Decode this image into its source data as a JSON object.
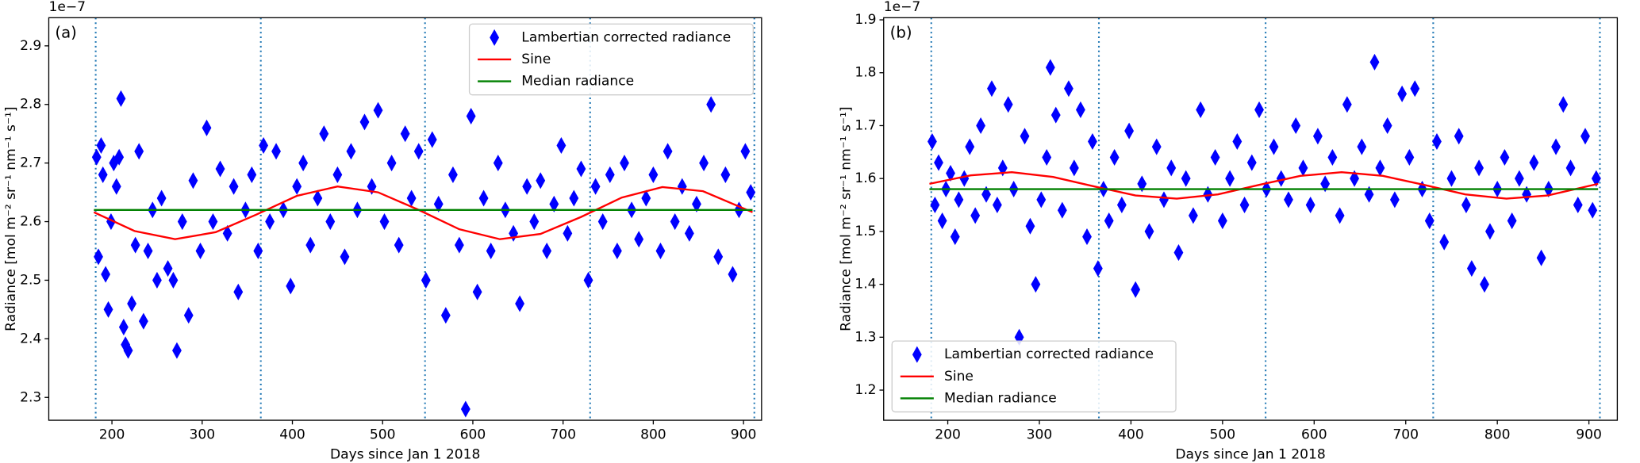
{
  "chart_data": [
    {
      "type": "scatter",
      "panel_label": "(a)",
      "offset_text": "1e−7",
      "xlabel": "Days since Jan 1 2018",
      "ylabel": "Radiance [mol m⁻² sr⁻¹ nm⁻¹ s⁻¹]",
      "xlim": [
        130,
        920
      ],
      "ylim": [
        2.261,
        2.948
      ],
      "xticks": [
        200,
        300,
        400,
        500,
        600,
        700,
        800,
        900
      ],
      "yticks": [
        2.3,
        2.4,
        2.5,
        2.6,
        2.7,
        2.8,
        2.9
      ],
      "legend": "upper right",
      "vlines": [
        182,
        365,
        547,
        730,
        912
      ],
      "vline_color": "#1f77b4",
      "series": [
        {
          "name": "Lambertian corrected radiance",
          "color": "#0000ff",
          "marker": "diamond",
          "x": [
            183,
            185,
            188,
            190,
            193,
            196,
            199,
            202,
            205,
            208,
            210,
            213,
            215,
            218,
            222,
            226,
            230,
            235,
            240,
            245,
            250,
            255,
            262,
            268,
            272,
            278,
            285,
            290,
            298,
            305,
            312,
            320,
            328,
            335,
            340,
            348,
            355,
            362,
            368,
            375,
            382,
            390,
            398,
            405,
            412,
            420,
            428,
            435,
            442,
            450,
            458,
            465,
            472,
            480,
            488,
            495,
            502,
            510,
            518,
            525,
            532,
            540,
            548,
            555,
            562,
            570,
            578,
            585,
            592,
            598,
            605,
            612,
            620,
            628,
            636,
            645,
            652,
            660,
            668,
            675,
            682,
            690,
            698,
            705,
            712,
            720,
            728,
            736,
            744,
            752,
            760,
            768,
            776,
            784,
            792,
            800,
            808,
            816,
            824,
            832,
            840,
            848,
            856,
            864,
            872,
            880,
            888,
            895,
            902,
            908
          ],
          "values": [
            2.71,
            2.54,
            2.73,
            2.68,
            2.51,
            2.45,
            2.6,
            2.7,
            2.66,
            2.71,
            2.81,
            2.42,
            2.39,
            2.38,
            2.46,
            2.56,
            2.72,
            2.43,
            2.55,
            2.62,
            2.5,
            2.64,
            2.52,
            2.5,
            2.38,
            2.6,
            2.44,
            2.67,
            2.55,
            2.76,
            2.6,
            2.69,
            2.58,
            2.66,
            2.48,
            2.62,
            2.68,
            2.55,
            2.73,
            2.6,
            2.72,
            2.62,
            2.49,
            2.66,
            2.7,
            2.56,
            2.64,
            2.75,
            2.6,
            2.68,
            2.54,
            2.72,
            2.62,
            2.77,
            2.66,
            2.79,
            2.6,
            2.7,
            2.56,
            2.75,
            2.64,
            2.72,
            2.5,
            2.74,
            2.63,
            2.44,
            2.68,
            2.56,
            2.28,
            2.78,
            2.48,
            2.64,
            2.55,
            2.7,
            2.62,
            2.58,
            2.46,
            2.66,
            2.6,
            2.67,
            2.55,
            2.63,
            2.73,
            2.58,
            2.64,
            2.69,
            2.5,
            2.66,
            2.6,
            2.68,
            2.55,
            2.7,
            2.62,
            2.57,
            2.64,
            2.68,
            2.55,
            2.72,
            2.6,
            2.66,
            2.58,
            2.63,
            2.7,
            2.8,
            2.54,
            2.68,
            2.51,
            2.62,
            2.72,
            2.65
          ]
        },
        {
          "name": "Sine",
          "color": "#ff0000",
          "marker": "line",
          "x": [
            180,
            225,
            270,
            315,
            360,
            405,
            450,
            495,
            540,
            585,
            630,
            675,
            720,
            765,
            810,
            855,
            910
          ],
          "values": [
            2.616,
            2.584,
            2.57,
            2.582,
            2.612,
            2.644,
            2.66,
            2.65,
            2.62,
            2.587,
            2.57,
            2.579,
            2.608,
            2.641,
            2.659,
            2.652,
            2.616
          ]
        },
        {
          "name": "Median radiance",
          "color": "#008000",
          "marker": "line",
          "x": [
            180,
            910
          ],
          "values": [
            2.62,
            2.62
          ]
        }
      ]
    },
    {
      "type": "scatter",
      "panel_label": "(b)",
      "offset_text": "1e−7",
      "xlabel": "Days since Jan 1 2018",
      "ylabel": "Radiance [mol m⁻² sr⁻¹ nm⁻¹ s⁻¹]",
      "xlim": [
        130,
        931
      ],
      "ylim": [
        1.143,
        1.904
      ],
      "xticks": [
        200,
        300,
        400,
        500,
        600,
        700,
        800,
        900
      ],
      "yticks": [
        1.2,
        1.3,
        1.4,
        1.5,
        1.6,
        1.7,
        1.8,
        1.9
      ],
      "legend": "lower left",
      "vlines": [
        182,
        365,
        547,
        730,
        912
      ],
      "vline_color": "#1f77b4",
      "series": [
        {
          "name": "Lambertian corrected radiance",
          "color": "#0000ff",
          "marker": "diamond",
          "x": [
            183,
            186,
            190,
            194,
            198,
            203,
            208,
            212,
            218,
            224,
            230,
            236,
            242,
            248,
            254,
            260,
            266,
            272,
            278,
            284,
            290,
            296,
            302,
            308,
            312,
            318,
            325,
            332,
            338,
            345,
            352,
            358,
            364,
            370,
            376,
            382,
            390,
            398,
            405,
            412,
            420,
            428,
            436,
            444,
            452,
            460,
            468,
            476,
            484,
            492,
            500,
            508,
            516,
            524,
            532,
            540,
            548,
            556,
            564,
            572,
            580,
            588,
            596,
            604,
            612,
            620,
            628,
            636,
            644,
            652,
            660,
            666,
            672,
            680,
            688,
            696,
            704,
            710,
            718,
            726,
            734,
            742,
            750,
            758,
            766,
            772,
            780,
            786,
            792,
            800,
            808,
            816,
            824,
            832,
            840,
            848,
            856,
            864,
            872,
            880,
            888,
            896,
            904,
            908
          ],
          "values": [
            1.67,
            1.55,
            1.63,
            1.52,
            1.58,
            1.61,
            1.49,
            1.56,
            1.6,
            1.66,
            1.53,
            1.7,
            1.57,
            1.77,
            1.55,
            1.62,
            1.74,
            1.58,
            1.3,
            1.68,
            1.51,
            1.4,
            1.56,
            1.64,
            1.81,
            1.72,
            1.54,
            1.77,
            1.62,
            1.73,
            1.49,
            1.67,
            1.43,
            1.58,
            1.52,
            1.64,
            1.55,
            1.69,
            1.39,
            1.59,
            1.5,
            1.66,
            1.56,
            1.62,
            1.46,
            1.6,
            1.53,
            1.73,
            1.57,
            1.64,
            1.52,
            1.6,
            1.67,
            1.55,
            1.63,
            1.73,
            1.58,
            1.66,
            1.6,
            1.56,
            1.7,
            1.62,
            1.55,
            1.68,
            1.59,
            1.64,
            1.53,
            1.74,
            1.6,
            1.66,
            1.57,
            1.82,
            1.62,
            1.7,
            1.56,
            1.76,
            1.64,
            1.77,
            1.58,
            1.52,
            1.67,
            1.48,
            1.6,
            1.68,
            1.55,
            1.43,
            1.62,
            1.4,
            1.5,
            1.58,
            1.64,
            1.52,
            1.6,
            1.57,
            1.63,
            1.45,
            1.58,
            1.66,
            1.74,
            1.62,
            1.55,
            1.68,
            1.54,
            1.6
          ]
        },
        {
          "name": "Sine",
          "color": "#ff0000",
          "marker": "line",
          "x": [
            180,
            225,
            270,
            315,
            360,
            405,
            450,
            495,
            540,
            585,
            630,
            675,
            720,
            765,
            810,
            855,
            910
          ],
          "values": [
            1.59,
            1.606,
            1.612,
            1.603,
            1.585,
            1.568,
            1.562,
            1.57,
            1.588,
            1.605,
            1.612,
            1.605,
            1.588,
            1.57,
            1.562,
            1.568,
            1.59
          ]
        },
        {
          "name": "Median radiance",
          "color": "#008000",
          "marker": "line",
          "x": [
            180,
            910
          ],
          "values": [
            1.58,
            1.58
          ]
        }
      ]
    }
  ]
}
